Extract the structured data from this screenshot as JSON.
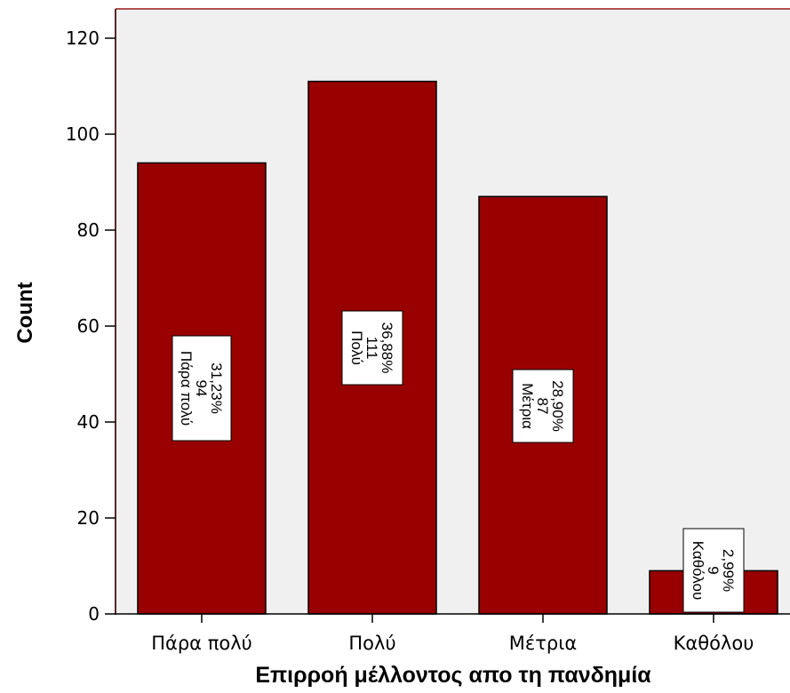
{
  "chart_data": {
    "type": "bar",
    "categories": [
      "Πάρα πολύ",
      "Πολύ",
      "Μέτρια",
      "Καθόλου"
    ],
    "values": [
      94,
      111,
      87,
      9
    ],
    "percentages": [
      "31,23%",
      "36,88%",
      "28,90%",
      "2,99%"
    ],
    "xlabel": "Επιρροή μέλλοντος απο τη πανδημία",
    "ylabel": "Count",
    "ylim": [
      0,
      125
    ],
    "yticks": [
      0,
      20,
      40,
      60,
      80,
      100,
      120
    ],
    "grid": false,
    "colors": {
      "bar": "#990000",
      "plot_background": "#f0f0f0",
      "frame": "#b05050"
    }
  }
}
